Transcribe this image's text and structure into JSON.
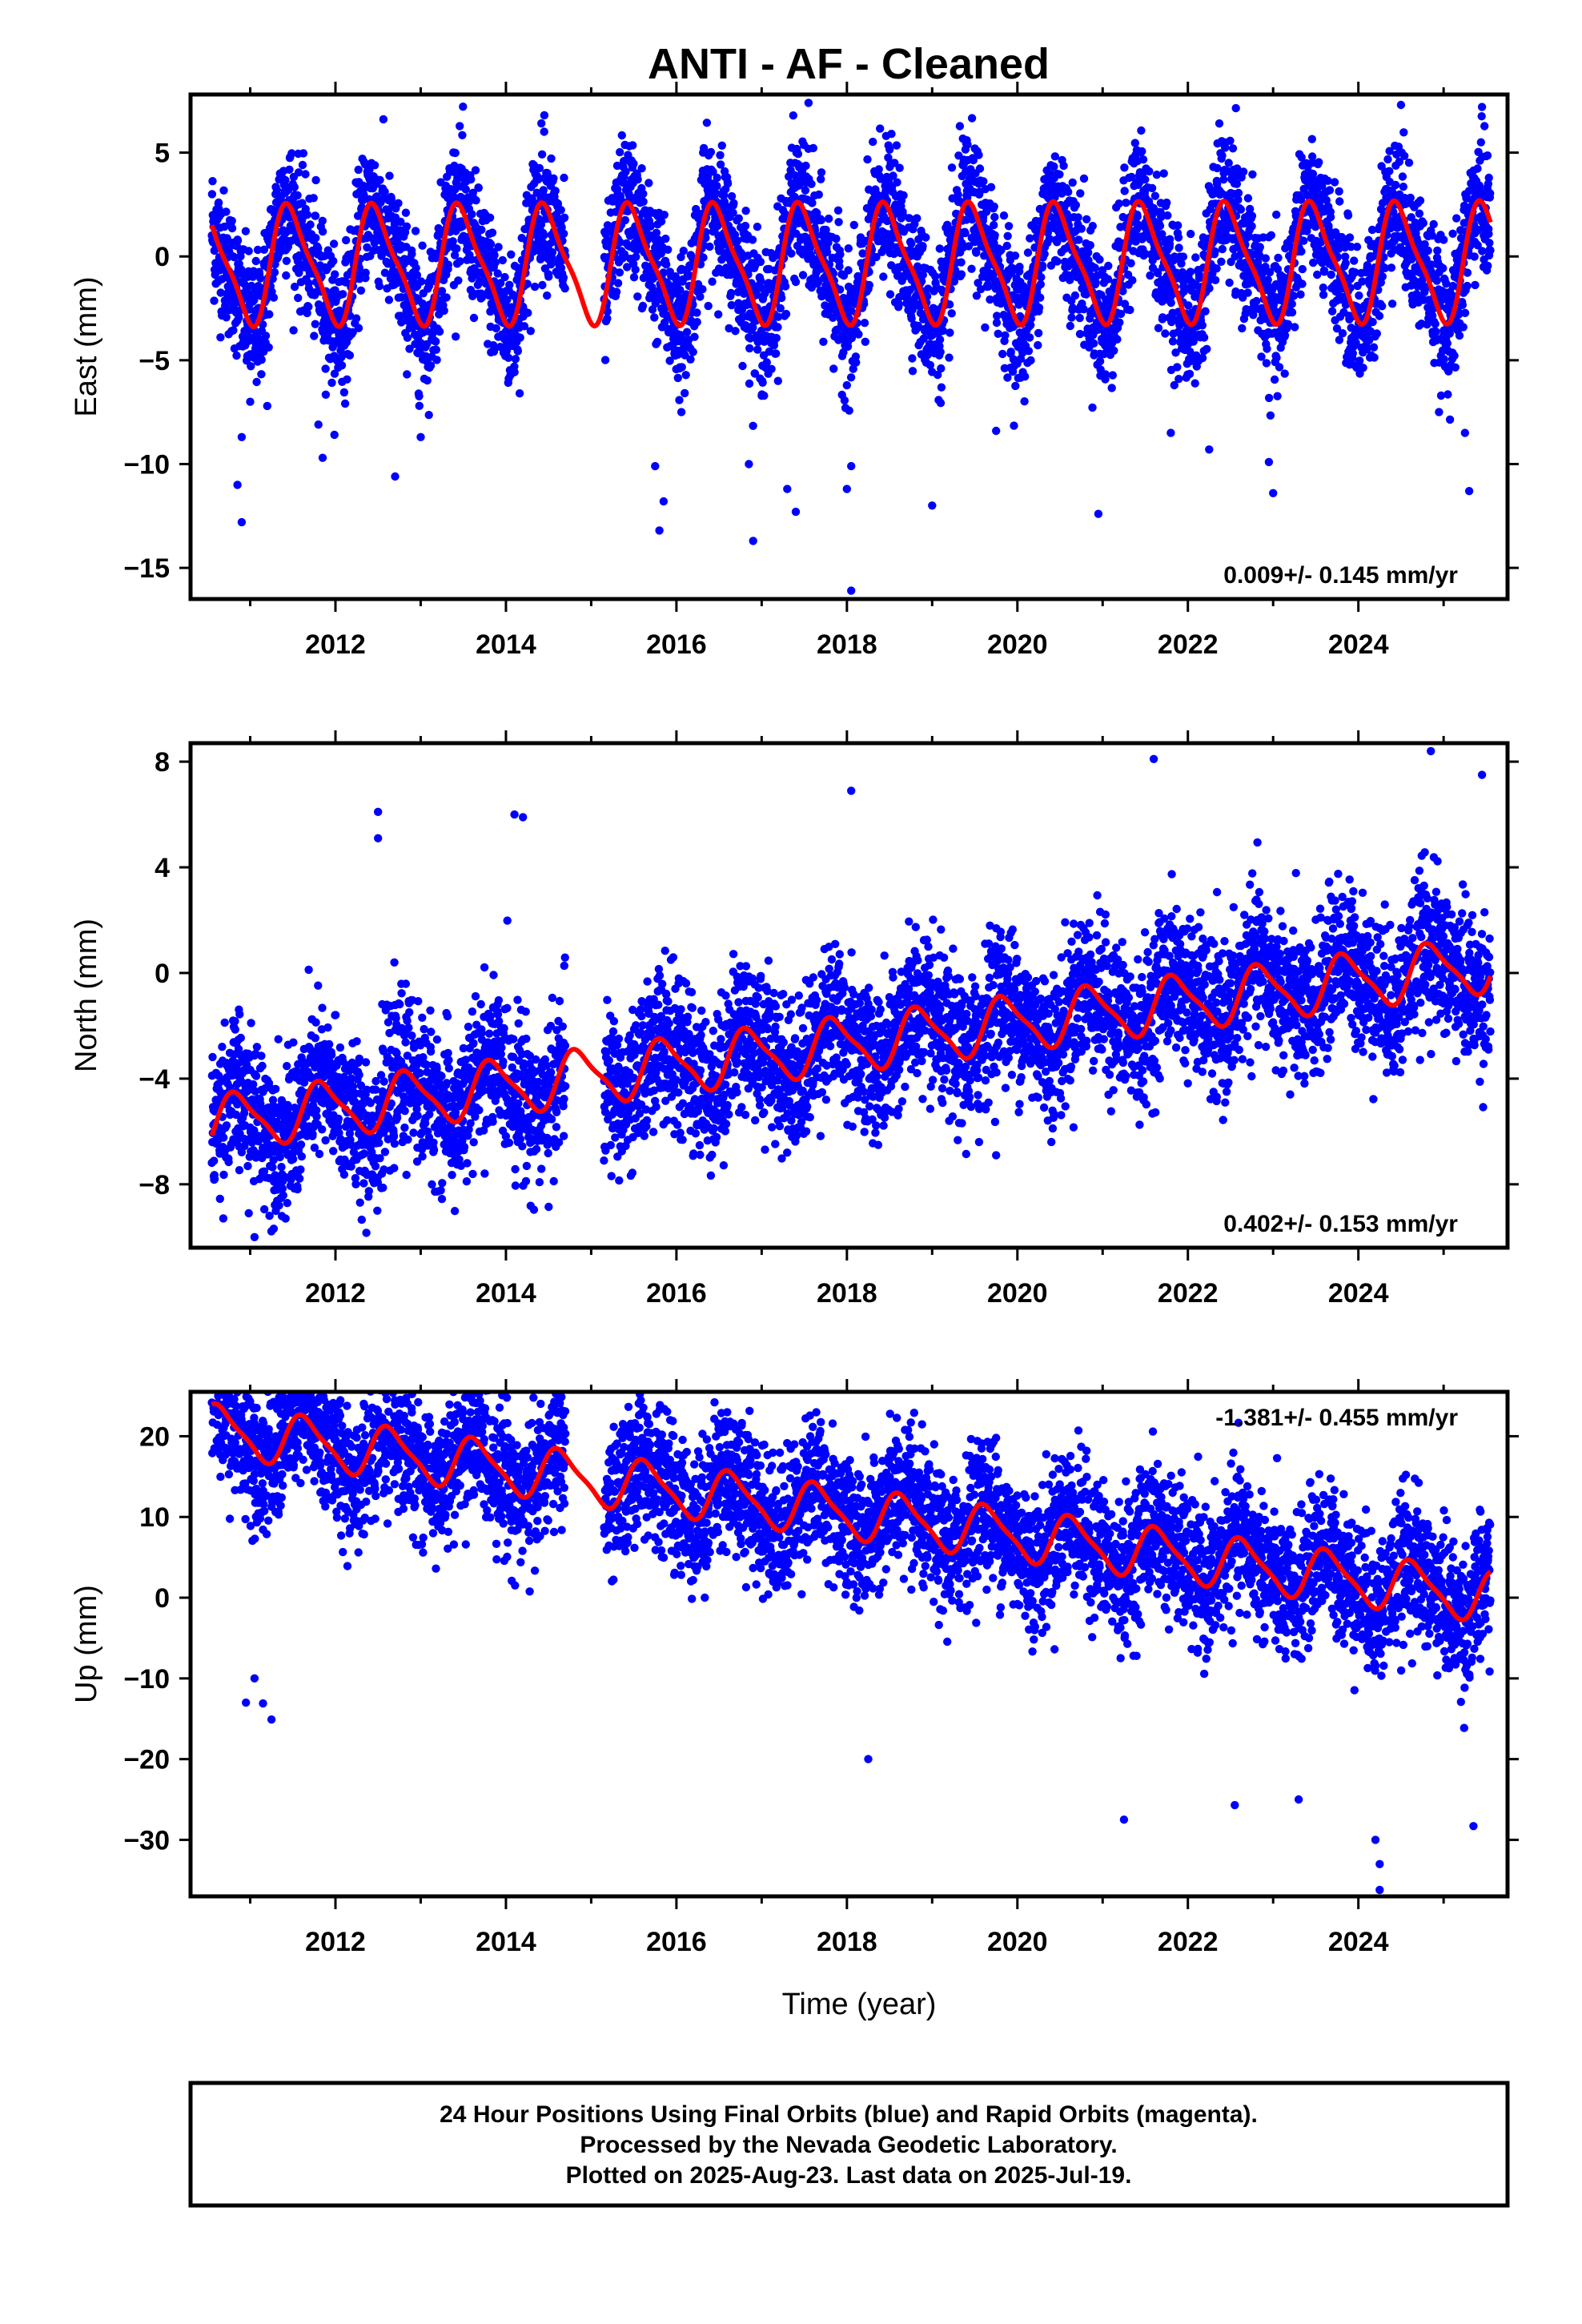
{
  "title": "ANTI  - AF - Cleaned",
  "xlabel": "Time (year)",
  "footer": {
    "line1": "24 Hour Positions Using Final Orbits (blue) and Rapid Orbits (magenta).",
    "line2": "Processed by the Nevada Geodetic Laboratory.",
    "line3": "Plotted on 2025-Aug-23. Last data on 2025-Jul-19."
  },
  "colors": {
    "points": "#0000ff",
    "fit": "#ff0000",
    "frame": "#000000"
  },
  "chart_data": [
    {
      "type": "scatter",
      "ylabel": "East (mm)",
      "rate_text": "0.009+/- 0.145 mm/yr",
      "rate_position": "bottom-right",
      "xlim": [
        2010.3,
        2025.75
      ],
      "ylim": [
        -16.5,
        7.8
      ],
      "yticks": [
        5,
        0,
        -5,
        -10,
        -15
      ],
      "ytick_labels": [
        "5",
        "0",
        "−5",
        "−10",
        "−15"
      ],
      "xticks": [
        2012,
        2014,
        2016,
        2018,
        2020,
        2022,
        2024
      ],
      "xtick_labels": [
        "2012",
        "2014",
        "2016",
        "2018",
        "2020",
        "2022",
        "2024"
      ],
      "data_start": 2010.55,
      "data_end": 2025.55,
      "gaps": [
        [
          2014.7,
          2015.15
        ]
      ],
      "series": [
        {
          "kind": "points",
          "trend_mm_per_yr": 0.009,
          "offset": -0.35,
          "annual_amp": 2.7,
          "annual_phase_yr": 0.23,
          "noise_sd": 1.6
        },
        {
          "kind": "fit_line",
          "trend_mm_per_yr": 0.009,
          "offset": -0.35,
          "annual_amp": 2.7,
          "annual_phase_yr": 0.23
        }
      ],
      "outliers": [
        [
          2010.9,
          -12.8
        ],
        [
          2010.85,
          -11.0
        ],
        [
          2010.9,
          -8.7
        ],
        [
          2011.0,
          -7.0
        ],
        [
          2011.2,
          -7.2
        ],
        [
          2011.8,
          -8.1
        ],
        [
          2011.85,
          -9.7
        ],
        [
          2012.7,
          -10.6
        ],
        [
          2013.0,
          -8.7
        ],
        [
          2014.45,
          6.8
        ],
        [
          2015.75,
          -10.1
        ],
        [
          2015.8,
          -13.2
        ],
        [
          2015.85,
          -11.8
        ],
        [
          2016.9,
          -13.7
        ],
        [
          2016.85,
          -10.0
        ],
        [
          2017.3,
          -11.2
        ],
        [
          2017.4,
          -12.3
        ],
        [
          2017.55,
          7.4
        ],
        [
          2018.05,
          -16.1
        ],
        [
          2018.0,
          -11.2
        ],
        [
          2018.05,
          -10.1
        ],
        [
          2019.0,
          -12.0
        ],
        [
          2019.75,
          -8.4
        ],
        [
          2020.95,
          -12.4
        ],
        [
          2021.8,
          -8.5
        ],
        [
          2022.25,
          -9.3
        ],
        [
          2023.0,
          -11.4
        ],
        [
          2022.95,
          -9.9
        ],
        [
          2024.5,
          7.3
        ],
        [
          2025.45,
          7.2
        ],
        [
          2025.3,
          -11.3
        ],
        [
          2025.25,
          -8.5
        ]
      ]
    },
    {
      "type": "scatter",
      "ylabel": "North (mm)",
      "rate_text": "0.402+/- 0.153 mm/yr",
      "rate_position": "bottom-right",
      "xlim": [
        2010.3,
        2025.75
      ],
      "ylim": [
        -10.4,
        8.7
      ],
      "yticks": [
        8,
        4,
        0,
        -4,
        -8
      ],
      "ytick_labels": [
        "8",
        "4",
        "0",
        "−4",
        "−8"
      ],
      "xticks": [
        2012,
        2014,
        2016,
        2018,
        2020,
        2022,
        2024
      ],
      "xtick_labels": [
        "2012",
        "2014",
        "2016",
        "2018",
        "2020",
        "2022",
        "2024"
      ],
      "data_start": 2010.55,
      "data_end": 2025.55,
      "gaps": [
        [
          2014.7,
          2015.15
        ]
      ],
      "series": [
        {
          "kind": "points",
          "trend_mm_per_yr": 0.402,
          "offset": -2.7,
          "annual_amp": 1.0,
          "annual_phase_yr": 0.6,
          "noise_sd": 1.4
        },
        {
          "kind": "fit_line",
          "trend_mm_per_yr": 0.402,
          "offset": -2.7,
          "annual_amp": 1.0,
          "annual_phase_yr": 0.6
        }
      ],
      "outliers": [
        [
          2011.05,
          -10.0
        ],
        [
          2012.5,
          6.1
        ],
        [
          2012.5,
          5.1
        ],
        [
          2014.1,
          6.0
        ],
        [
          2014.2,
          5.9
        ],
        [
          2015.15,
          -7.1
        ],
        [
          2019.2,
          -5.6
        ],
        [
          2019.55,
          -6.4
        ],
        [
          2019.75,
          -6.9
        ],
        [
          2018.05,
          6.9
        ],
        [
          2021.6,
          8.1
        ],
        [
          2024.85,
          8.4
        ],
        [
          2025.45,
          7.5
        ],
        [
          2023.2,
          -4.6
        ],
        [
          2022.3,
          -4.5
        ],
        [
          2013.0,
          -6.1
        ],
        [
          2012.55,
          -5.5
        ]
      ]
    },
    {
      "type": "scatter",
      "ylabel": "Up (mm)",
      "rate_text": "-1.381+/- 0.455 mm/yr",
      "rate_position": "top-right",
      "xlim": [
        2010.3,
        2025.75
      ],
      "ylim": [
        -37,
        25.5
      ],
      "yticks": [
        20,
        10,
        0,
        -10,
        -20,
        -30
      ],
      "ytick_labels": [
        "20",
        "10",
        "0",
        "−10",
        "−20",
        "−30"
      ],
      "xticks": [
        2012,
        2014,
        2016,
        2018,
        2020,
        2022,
        2024
      ],
      "xtick_labels": [
        "2012",
        "2014",
        "2016",
        "2018",
        "2020",
        "2022",
        "2024"
      ],
      "data_start": 2010.55,
      "data_end": 2025.55,
      "gaps": [
        [
          2014.7,
          2015.15
        ]
      ],
      "series": [
        {
          "kind": "points",
          "trend_mm_per_yr": -1.381,
          "offset": 10.5,
          "annual_amp": 3.0,
          "annual_phase_yr": 0.4,
          "noise_sd": 4.3
        },
        {
          "kind": "fit_line",
          "trend_mm_per_yr": -1.381,
          "offset": 10.5,
          "annual_amp": 3.0,
          "annual_phase_yr": 0.4
        }
      ],
      "outliers": [
        [
          2010.8,
          24.0
        ],
        [
          2011.5,
          24.0
        ],
        [
          2011.8,
          23.0
        ],
        [
          2012.75,
          22.8
        ],
        [
          2013.9,
          21.0
        ],
        [
          2010.95,
          -13.0
        ],
        [
          2011.15,
          -13.1
        ],
        [
          2011.25,
          -15.1
        ],
        [
          2011.05,
          -10.0
        ],
        [
          2018.25,
          -20.0
        ],
        [
          2018.75,
          21.7
        ],
        [
          2019.75,
          19.8
        ],
        [
          2019.65,
          19.3
        ],
        [
          2024.25,
          -36.2
        ],
        [
          2024.25,
          -33.0
        ],
        [
          2024.2,
          -30.0
        ],
        [
          2021.25,
          -27.5
        ],
        [
          2022.55,
          -25.7
        ],
        [
          2023.3,
          -25.0
        ],
        [
          2025.35,
          -28.3
        ],
        [
          2024.5,
          9.3
        ],
        [
          2025.5,
          4.7
        ]
      ]
    }
  ]
}
